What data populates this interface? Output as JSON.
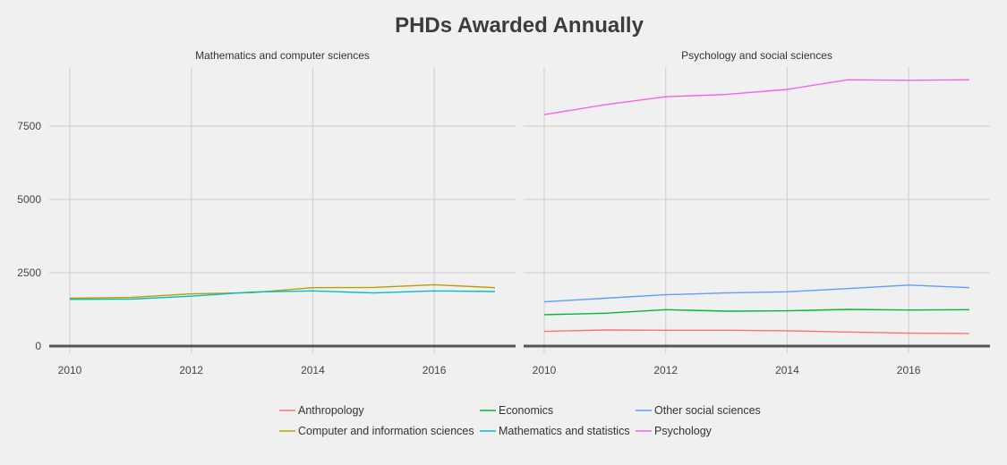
{
  "chart_data": {
    "type": "line",
    "title": "PHDs Awarded Annually",
    "xlabel": "",
    "ylabel": "",
    "x": [
      2010,
      2011,
      2012,
      2013,
      2014,
      2015,
      2016,
      2017
    ],
    "xticks": [
      "2010",
      "2012",
      "2014",
      "2016"
    ],
    "xlim": [
      2010,
      2017
    ],
    "yticks": [
      "0",
      "2500",
      "5000",
      "7500"
    ],
    "ylim": [
      0,
      9500
    ],
    "grid": true,
    "legend_position": "bottom",
    "panels": [
      {
        "strip_label": "Mathematics and computer sciences",
        "series": [
          {
            "name": "Computer and information sciences",
            "color": "#b79f00",
            "values": [
              1630,
              1660,
              1780,
              1820,
              1990,
              2000,
              2090,
              1990
            ]
          },
          {
            "name": "Mathematics and statistics",
            "color": "#00bfc4",
            "values": [
              1590,
              1600,
              1700,
              1840,
              1880,
              1810,
              1880,
              1860
            ]
          }
        ]
      },
      {
        "strip_label": "Psychology and social sciences",
        "series": [
          {
            "name": "Anthropology",
            "color": "#f8766d",
            "values": [
              500,
              550,
              540,
              540,
              520,
              480,
              440,
              430
            ]
          },
          {
            "name": "Economics",
            "color": "#00ba38",
            "values": [
              1070,
              1120,
              1240,
              1190,
              1200,
              1250,
              1230,
              1240
            ]
          },
          {
            "name": "Other social sciences",
            "color": "#619cff",
            "values": [
              1510,
              1630,
              1750,
              1810,
              1850,
              1960,
              2080,
              1990
            ]
          },
          {
            "name": "Psychology",
            "color": "#f564e3",
            "values": [
              7890,
              8230,
              8500,
              8580,
              8750,
              9080,
              9060,
              9080
            ]
          }
        ]
      }
    ],
    "legend": [
      {
        "name": "Anthropology",
        "color": "#f8766d"
      },
      {
        "name": "Economics",
        "color": "#00ba38"
      },
      {
        "name": "Other social sciences",
        "color": "#619cff"
      },
      {
        "name": "Computer and information sciences",
        "color": "#b79f00"
      },
      {
        "name": "Mathematics and statistics",
        "color": "#00bfc4"
      },
      {
        "name": "Psychology",
        "color": "#f564e3"
      }
    ]
  }
}
